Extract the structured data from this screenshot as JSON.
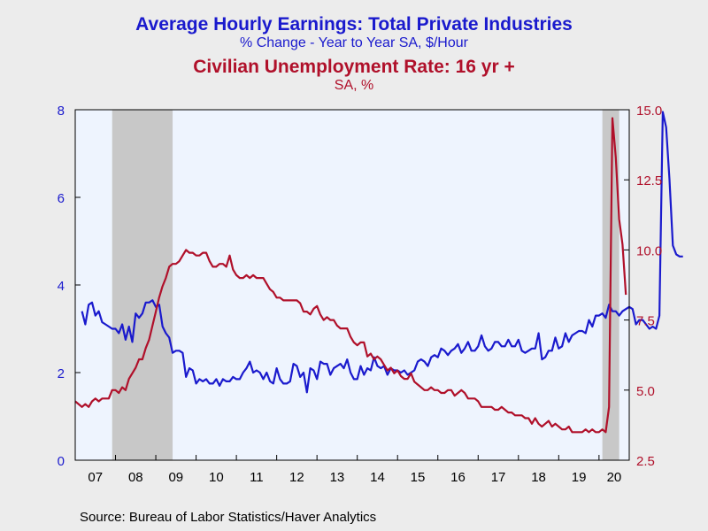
{
  "chart_data": {
    "type": "line",
    "title": "Average Hourly Earnings: Total Private Industries",
    "subtitle": "% Change - Year to Year    SA, $/Hour",
    "title2": "Civilian Unemployment Rate: 16 yr +",
    "subtitle2": "SA, %",
    "source": "Source:  Bureau of Labor Statistics/Haver Analytics",
    "x_tick_labels": [
      "07",
      "08",
      "09",
      "10",
      "11",
      "12",
      "13",
      "14",
      "15",
      "16",
      "17",
      "18",
      "19",
      "20"
    ],
    "x_range": [
      2007.0,
      2020.75
    ],
    "left_axis": {
      "ticks": [
        "0",
        "2",
        "4",
        "6",
        "8"
      ],
      "ylim": [
        0,
        8
      ],
      "color": "#1a1acd"
    },
    "right_axis": {
      "ticks": [
        "2.5",
        "5.0",
        "7.5",
        "10.0",
        "12.5",
        "15.0"
      ],
      "ylim": [
        2.5,
        15.0
      ],
      "color": "#b0102a"
    },
    "recessions": [
      [
        2007.917,
        2009.417
      ],
      [
        2020.083,
        2020.5
      ]
    ],
    "grid": false,
    "series": [
      {
        "axis": "left",
        "color": "#1a1acd",
        "x_start": 2007.167,
        "step": 0.08333,
        "values": [
          3.4,
          3.1,
          3.55,
          3.6,
          3.3,
          3.4,
          3.15,
          3.1,
          3.05,
          3.0,
          3.0,
          2.9,
          3.1,
          2.75,
          3.05,
          2.7,
          3.35,
          3.25,
          3.35,
          3.6,
          3.6,
          3.65,
          3.5,
          3.55,
          3.05,
          2.9,
          2.8,
          2.45,
          2.5,
          2.5,
          2.45,
          1.9,
          2.1,
          2.05,
          1.75,
          1.85,
          1.8,
          1.85,
          1.75,
          1.75,
          1.85,
          1.7,
          1.85,
          1.8,
          1.8,
          1.9,
          1.85,
          1.85,
          2.0,
          2.1,
          2.25,
          2.0,
          2.05,
          2.0,
          1.85,
          2.0,
          1.8,
          1.75,
          2.1,
          1.85,
          1.75,
          1.75,
          1.8,
          2.2,
          2.15,
          1.9,
          2.0,
          1.55,
          2.1,
          2.05,
          1.85,
          2.25,
          2.2,
          2.2,
          1.95,
          2.1,
          2.15,
          2.2,
          2.1,
          2.3,
          2.0,
          1.85,
          1.85,
          2.15,
          1.95,
          2.1,
          2.05,
          2.35,
          2.15,
          2.1,
          2.15,
          1.95,
          2.1,
          2.05,
          2.05,
          2.0,
          2.05,
          1.95,
          2.0,
          2.05,
          2.25,
          2.3,
          2.25,
          2.15,
          2.35,
          2.4,
          2.35,
          2.55,
          2.5,
          2.4,
          2.5,
          2.55,
          2.65,
          2.45,
          2.55,
          2.7,
          2.5,
          2.5,
          2.6,
          2.85,
          2.6,
          2.5,
          2.55,
          2.7,
          2.7,
          2.6,
          2.6,
          2.75,
          2.6,
          2.6,
          2.75,
          2.5,
          2.45,
          2.5,
          2.55,
          2.55,
          2.9,
          2.3,
          2.35,
          2.5,
          2.5,
          2.8,
          2.55,
          2.6,
          2.9,
          2.7,
          2.85,
          2.9,
          2.95,
          2.95,
          2.9,
          3.2,
          3.05,
          3.3,
          3.3,
          3.35,
          3.25,
          3.55,
          3.4,
          3.4,
          3.3,
          3.4,
          3.45,
          3.5,
          3.45,
          3.1,
          3.2,
          3.2,
          3.1,
          3.0,
          3.05,
          3.0,
          3.3,
          7.95,
          7.6,
          6.4,
          4.9,
          4.7,
          4.65,
          4.65
        ]
      },
      {
        "axis": "right",
        "color": "#b0102a",
        "x_start": 2007.0,
        "step": 0.08333,
        "values": [
          4.6,
          4.5,
          4.4,
          4.5,
          4.4,
          4.6,
          4.7,
          4.6,
          4.7,
          4.7,
          4.7,
          5.0,
          5.0,
          4.9,
          5.1,
          5.0,
          5.4,
          5.6,
          5.8,
          6.1,
          6.1,
          6.5,
          6.8,
          7.3,
          7.8,
          8.3,
          8.7,
          9.0,
          9.4,
          9.5,
          9.5,
          9.6,
          9.8,
          10.0,
          9.9,
          9.9,
          9.8,
          9.8,
          9.9,
          9.9,
          9.6,
          9.4,
          9.4,
          9.5,
          9.5,
          9.4,
          9.8,
          9.3,
          9.1,
          9.0,
          9.0,
          9.1,
          9.0,
          9.1,
          9.0,
          9.0,
          9.0,
          8.8,
          8.6,
          8.5,
          8.3,
          8.3,
          8.2,
          8.2,
          8.2,
          8.2,
          8.2,
          8.1,
          7.8,
          7.8,
          7.7,
          7.9,
          8.0,
          7.7,
          7.5,
          7.6,
          7.5,
          7.5,
          7.3,
          7.2,
          7.2,
          7.2,
          6.9,
          6.7,
          6.6,
          6.7,
          6.7,
          6.2,
          6.3,
          6.1,
          6.2,
          6.1,
          5.9,
          5.7,
          5.8,
          5.6,
          5.7,
          5.5,
          5.4,
          5.4,
          5.6,
          5.3,
          5.2,
          5.1,
          5.0,
          5.0,
          5.1,
          5.0,
          5.0,
          4.9,
          4.9,
          5.0,
          5.0,
          4.8,
          4.9,
          5.0,
          4.9,
          4.7,
          4.7,
          4.7,
          4.6,
          4.4,
          4.4,
          4.4,
          4.4,
          4.3,
          4.3,
          4.4,
          4.3,
          4.2,
          4.2,
          4.1,
          4.1,
          4.1,
          4.0,
          4.0,
          3.8,
          4.0,
          3.8,
          3.7,
          3.8,
          3.9,
          3.7,
          3.8,
          3.7,
          3.6,
          3.6,
          3.7,
          3.5,
          3.5,
          3.5,
          3.5,
          3.6,
          3.5,
          3.6,
          3.5,
          3.5,
          3.6,
          3.5,
          4.4,
          14.7,
          13.3,
          11.1,
          10.2,
          8.4
        ]
      }
    ]
  },
  "colors": {
    "plot_bg": "#eef4fe",
    "recession": "#c8c8c8",
    "page_bg": "#ececec",
    "frame": "#000000"
  }
}
